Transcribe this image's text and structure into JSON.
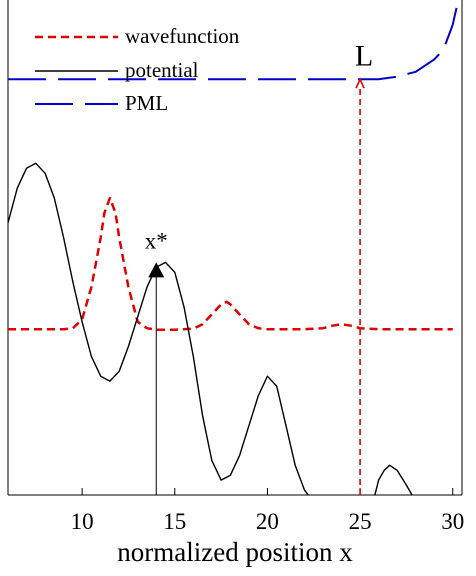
{
  "chart_data": {
    "type": "line",
    "xlabel": "normalized position x",
    "ylabel": "",
    "xlim": [
      6,
      30.5
    ],
    "xticks": [
      10,
      15,
      20,
      25,
      30
    ],
    "ylim": [
      0,
      1
    ],
    "grid": false,
    "legend": {
      "position": "top-left",
      "entries": [
        {
          "label": "wavefunction",
          "series": "wavefunction"
        },
        {
          "label": "potential",
          "series": "potential"
        },
        {
          "label": "PML",
          "series": "pml"
        }
      ]
    },
    "series": [
      {
        "name": "wavefunction",
        "color": "#e00000",
        "style": "dashed",
        "x": [
          6,
          7,
          8,
          9,
          9.5,
          10,
          10.5,
          11,
          11.2,
          11.5,
          11.8,
          12,
          12.5,
          13,
          13.5,
          14,
          15,
          16,
          16.5,
          17,
          17.5,
          17.8,
          18,
          18.5,
          19,
          19.5,
          20,
          21,
          22,
          23,
          23.5,
          24,
          24.5,
          25,
          26,
          27,
          28,
          29,
          30
        ],
        "y": [
          0.335,
          0.335,
          0.335,
          0.335,
          0.337,
          0.355,
          0.42,
          0.52,
          0.57,
          0.6,
          0.57,
          0.52,
          0.42,
          0.35,
          0.337,
          0.334,
          0.334,
          0.336,
          0.345,
          0.365,
          0.385,
          0.39,
          0.385,
          0.365,
          0.345,
          0.337,
          0.335,
          0.335,
          0.335,
          0.337,
          0.342,
          0.345,
          0.342,
          0.337,
          0.335,
          0.335,
          0.335,
          0.335,
          0.335
        ]
      },
      {
        "name": "potential",
        "color": "#000000",
        "style": "solid",
        "x": [
          6,
          6.5,
          7,
          7.5,
          8,
          8.5,
          9,
          9.5,
          10,
          10.5,
          11,
          11.5,
          12,
          12.5,
          13,
          13.5,
          14,
          14.5,
          15,
          15.5,
          16,
          16.5,
          17,
          17.5,
          18,
          18.5,
          19,
          19.5,
          20,
          20.5,
          21,
          21.5,
          22,
          22.2
        ],
        "y": [
          0.55,
          0.62,
          0.66,
          0.67,
          0.65,
          0.6,
          0.52,
          0.43,
          0.35,
          0.28,
          0.24,
          0.23,
          0.25,
          0.3,
          0.36,
          0.42,
          0.46,
          0.47,
          0.45,
          0.38,
          0.28,
          0.16,
          0.07,
          0.03,
          0.04,
          0.08,
          0.14,
          0.2,
          0.24,
          0.22,
          0.14,
          0.06,
          0.01,
          0.0
        ]
      },
      {
        "name": "potential (tail)",
        "color": "#000000",
        "style": "solid",
        "x": [
          25.8,
          26,
          26.3,
          26.6,
          27,
          27.5,
          27.8
        ],
        "y": [
          0.0,
          0.03,
          0.05,
          0.06,
          0.05,
          0.02,
          0.0
        ]
      },
      {
        "name": "PML",
        "color": "#0000cc",
        "style": "dashed",
        "x": [
          6,
          25,
          26,
          27,
          28,
          29,
          29.5,
          30,
          30.3,
          30.5
        ],
        "y": [
          0.84,
          0.84,
          0.84,
          0.845,
          0.855,
          0.88,
          0.9,
          0.95,
          1.0,
          1.04
        ]
      }
    ],
    "annotations": [
      {
        "text": "x*",
        "x": 14,
        "y": 0.51,
        "arrow_to_y": 0.47,
        "arrow_from_y": 0.0
      },
      {
        "text": "L",
        "x": 25,
        "y": 0.86,
        "arrow_to_y": 0.84,
        "arrow_from_y": 0.0,
        "style": "dashed",
        "color": "#e00000"
      }
    ]
  }
}
